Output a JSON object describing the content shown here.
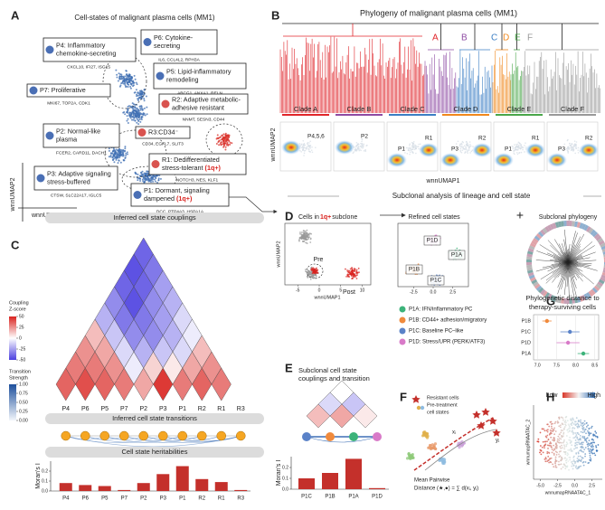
{
  "panel_labels": {
    "a": "A",
    "b": "B",
    "c": "C",
    "d": "D",
    "e": "E",
    "f": "F",
    "g": "G",
    "h": "H"
  },
  "a": {
    "title": "Cell-states of malignant plasma cells (MM1)",
    "states": [
      {
        "lines": [
          "P4: Inflammatory",
          "chemokine-secreting"
        ],
        "genes": "CXCL10, IFI27, ISG15",
        "kind": "P"
      },
      {
        "lines": [
          "P6: Cytokine-",
          "secreting"
        ],
        "genes": "IL6, CCL4L2, RPH3A",
        "kind": "P"
      },
      {
        "lines": [
          "P5: Lipid-inflammatory",
          "remodeling"
        ],
        "genes": "ABCG1, ANXA1, RELN",
        "kind": "P"
      },
      {
        "lines": [
          "P7: Proliferative"
        ],
        "genes": "MKI67, TOP2A, CDK1",
        "kind": "P"
      },
      {
        "lines": [
          "R2: Adaptive metabolic-",
          "adhesive resistant"
        ],
        "genes": "NNMT, SESN3, CD44",
        "kind": "R"
      },
      {
        "lines": [
          "P2: Normal-like",
          "plasma"
        ],
        "genes": "FCER2, CARD11, DACH1",
        "kind": "P"
      },
      {
        "lines": [
          "R3:CD34⁻"
        ],
        "genes": "CD34, EGFL7, SLIT3",
        "kind": "R"
      },
      {
        "lines": [
          "R1: Dedifferentiated",
          "stress-tolerant"
        ],
        "tag": "(1q+)",
        "genes": "NOTCH3, NES, KLF1",
        "kind": "R"
      },
      {
        "lines": [
          "P3: Adaptive signaling",
          "stress-buffered"
        ],
        "genes": "CTSW, SLC22A17, IGLC5",
        "kind": "P"
      },
      {
        "lines": [
          "P1: Dormant, signaling",
          "dampened"
        ],
        "tag": "(1q+)",
        "genes": "DCC, PTP4A3, HSPA1A",
        "kind": "P"
      }
    ],
    "x_axis": "wnnUMAP1",
    "y_axis": "wnnUMAP2"
  },
  "b": {
    "title": "Phylogeny of malignant plasma cells (MM1)",
    "clades": [
      {
        "letter": "A",
        "name": "Clade A",
        "color": "#e0262b",
        "labels": [
          "P4,5,6"
        ]
      },
      {
        "letter": "B",
        "name": "Clade B",
        "color": "#8e4ba3",
        "labels": [
          "P2"
        ]
      },
      {
        "letter": "C",
        "name": "Clade C",
        "color": "#3c7fc4",
        "labels": [
          "P1",
          "R1"
        ]
      },
      {
        "letter": "D",
        "name": "Clade D",
        "color": "#f0881d",
        "labels": [
          "P3",
          "R2"
        ]
      },
      {
        "letter": "E",
        "name": "Clade E",
        "color": "#4aa64a",
        "labels": [
          "P1",
          "R1"
        ]
      },
      {
        "letter": "F",
        "name": "Clade F",
        "color": "#9a9a9a",
        "labels": [
          "P3",
          "R2"
        ]
      }
    ],
    "x_axis": "wnnUMAP1",
    "y_axis": "wnnUMAP2"
  },
  "subclonal_header": "Subclonal analysis of lineage and cell state",
  "c": {
    "couplings_title": "Inferred cell state couplings",
    "states": [
      "P4",
      "P6",
      "P5",
      "P7",
      "P2",
      "P3",
      "P1",
      "R2",
      "R1",
      "R3"
    ],
    "coupling_z": [
      [
        35,
        30,
        25,
        15,
        -20,
        -30,
        -40,
        -45,
        -40
      ],
      [
        40,
        30,
        20,
        -15,
        -35,
        -45,
        -40,
        -35
      ],
      [
        35,
        25,
        -10,
        -30,
        -35,
        -30,
        -25
      ],
      [
        30,
        -5,
        -20,
        -30,
        -25,
        -20
      ],
      [
        20,
        10,
        -15,
        -20,
        -10
      ],
      [
        45,
        5,
        -10,
        -5
      ],
      [
        30,
        20,
        15
      ],
      [
        35,
        25
      ],
      [
        30
      ]
    ],
    "coupling_legend": {
      "title": [
        "Coupling",
        "Z-score"
      ],
      "ticks": [
        50,
        25,
        0,
        -25,
        -50
      ]
    },
    "transition_legend": {
      "title": [
        "Transition",
        "Strength"
      ],
      "ticks": [
        {
          "value": 1,
          "label": "1.00"
        },
        {
          "value": 0.75,
          "label": "0.75"
        },
        {
          "value": 0.5,
          "label": "0.50"
        },
        {
          "value": 0.25,
          "label": "0.25"
        },
        {
          "value": 0,
          "label": "0.00"
        }
      ]
    },
    "transitions_title": "Inferred cell state transitions",
    "heritability_title": "Cell state heritabilities",
    "y_axis": "Moran's I",
    "morans_i": [
      0.08,
      0.06,
      0.05,
      0.01,
      0.08,
      0.17,
      0.25,
      0.12,
      0.09,
      0.01
    ],
    "ylim": [
      0,
      0.3
    ],
    "yticks": [
      {
        "value": 0,
        "label": "0.0"
      },
      {
        "value": 0.1,
        "label": "0.1"
      },
      {
        "value": 0.2,
        "label": "0.2"
      }
    ]
  },
  "d": {
    "label": "Cells in ",
    "label_tag": "1q+",
    "label_end": " subclone",
    "pre": "Pre",
    "post": "Post",
    "x_axis": "wnnUMAP1",
    "y_axis": "wnnUMAP2",
    "xlim": [
      -8,
      12
    ],
    "xticks": [
      -5,
      0,
      5,
      10
    ],
    "refined_title": "Refined cell states",
    "refined_clusters": [
      "P1D",
      "P1A",
      "P1B",
      "P1C"
    ],
    "refined_xlim": [
      -4.5,
      4.5
    ],
    "refined_xticks": [
      {
        "value": -2.5,
        "label": "-2.5"
      },
      {
        "value": 0,
        "label": "0.0"
      },
      {
        "value": 2.5,
        "label": "2.5"
      }
    ],
    "plus": "+",
    "phylogeny_title": "Subclonal phylogeny",
    "legend": [
      {
        "name": "P1A: IFN/inflammatory PC",
        "color": "#3cb37a"
      },
      {
        "name": "P1B: CD44+ adhesion/migratory",
        "color": "#f08a3c"
      },
      {
        "name": "P1C: Baseline PC–like",
        "color": "#5a82c8"
      },
      {
        "name": "P1D: Stress/UPR (PERK/ATF3)",
        "color": "#d87ac8"
      }
    ]
  },
  "e": {
    "title": [
      "Subclonal cell state",
      "couplings and transition"
    ],
    "states": [
      "P1C",
      "P1B",
      "P1A",
      "P1D"
    ],
    "colors": [
      "#5a82c8",
      "#f08a3c",
      "#3cb37a",
      "#d87ac8"
    ],
    "coupling_z": [
      [
        15,
        -10,
        0
      ],
      [
        20,
        -15
      ],
      [
        5
      ]
    ],
    "y_axis": "Moran's I",
    "morans_i": [
      0.1,
      0.15,
      0.28,
      0.01
    ],
    "ylim": [
      0,
      0.3
    ],
    "yticks": [
      {
        "value": 0,
        "label": "0.0"
      },
      {
        "value": 0.1,
        "label": "0.1"
      },
      {
        "value": 0.2,
        "label": "0.2"
      }
    ]
  },
  "f": {
    "legend": [
      "Resistant cells",
      "Pre-treatment",
      "cell states"
    ],
    "xi": "xᵢ",
    "yj": "yⱼ",
    "formula": [
      "Mean Pairwise",
      "Distance (★,●) = ∑ d(xᵢ, yⱼ)"
    ]
  },
  "g": {
    "title": [
      "Phylogenetic distance to",
      "therapy-surviving cells"
    ],
    "states": [
      "P1B",
      "P1C",
      "P1D",
      "P1A"
    ],
    "values": [
      7.25,
      7.85,
      7.8,
      8.2
    ],
    "errors": [
      0.12,
      0.25,
      0.3,
      0.15
    ],
    "colors": [
      "#f08a3c",
      "#5a82c8",
      "#d87ac8",
      "#3cb37a"
    ],
    "xlim": [
      6.9,
      8.6
    ],
    "xticks": [
      {
        "value": 7,
        "label": "7.0"
      },
      7.5,
      {
        "value": 8,
        "label": "8.0"
      },
      8.5
    ]
  },
  "h": {
    "low": "Low",
    "high": "High",
    "x_axis": "wnnumapRNAATAC_1",
    "y_axis": "wnnumapRNAATAC_2",
    "xlim": [
      -6,
      4
    ],
    "xticks": [
      {
        "value": -5,
        "label": "-5.0"
      },
      -2.5,
      {
        "value": 0,
        "label": "0.0"
      },
      2.5
    ]
  }
}
